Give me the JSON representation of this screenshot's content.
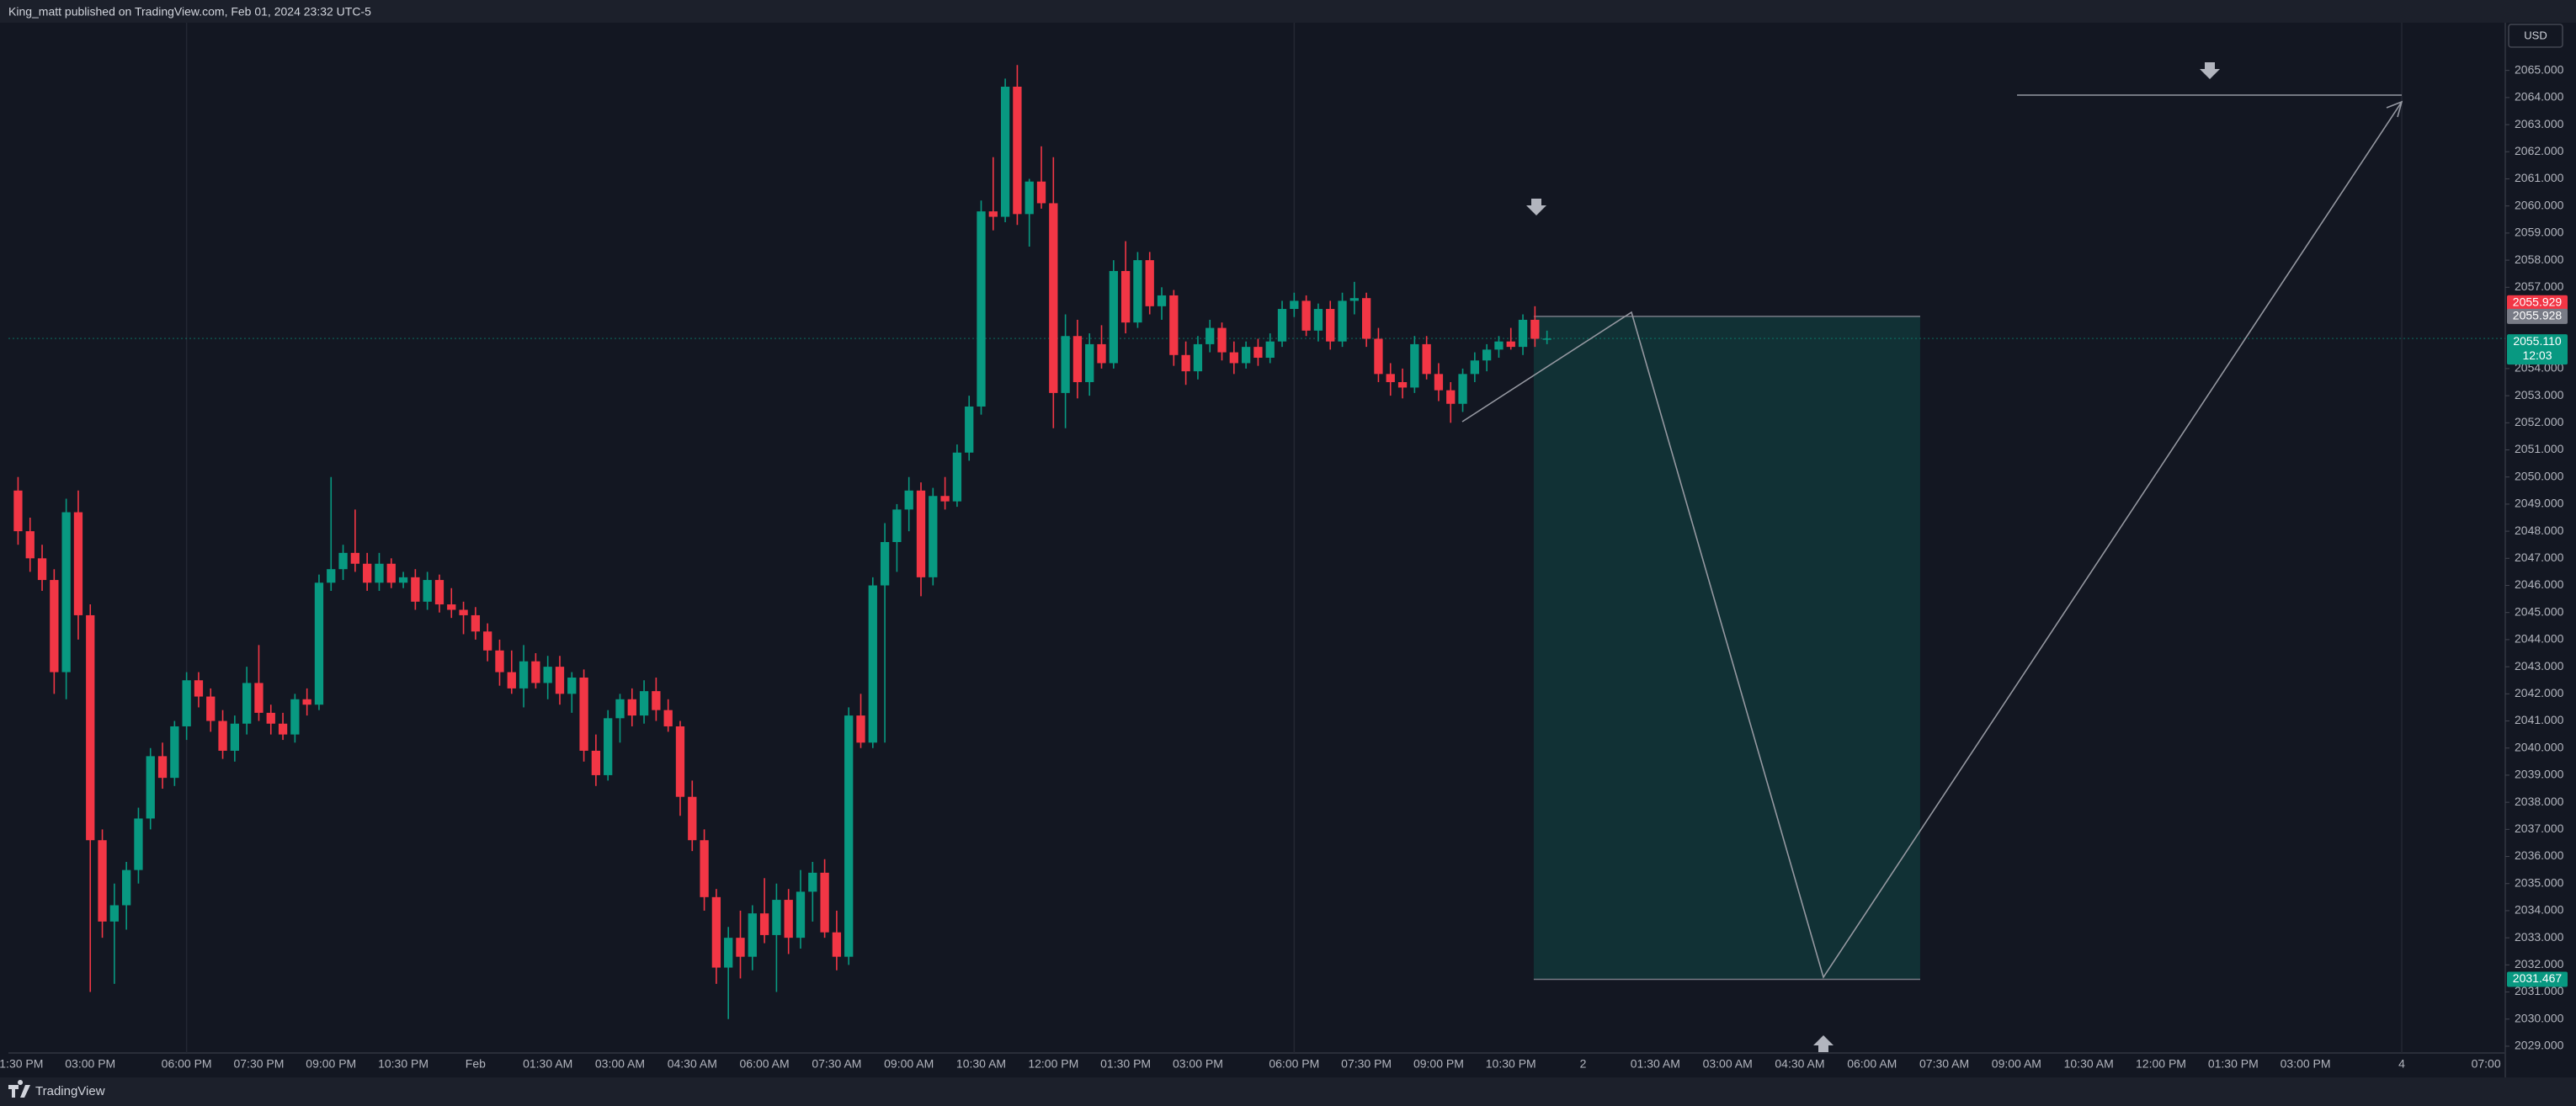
{
  "header": {
    "attribution": "King_matt published on TradingView.com, Feb 01, 2024 23:32 UTC-5"
  },
  "currency": "USD",
  "footer": {
    "brand": "TradingView"
  },
  "chart_data": {
    "type": "candlestick",
    "up_color": "#089981",
    "down_color": "#f23645",
    "ohlc": [
      [
        2049.5,
        2050,
        2047.5,
        2048
      ],
      [
        2048,
        2048.5,
        2046.5,
        2047
      ],
      [
        2047,
        2047.5,
        2045.8,
        2046.2
      ],
      [
        2046.2,
        2046.6,
        2042,
        2042.8
      ],
      [
        2042.8,
        2049.2,
        2041.8,
        2048.7
      ],
      [
        2048.7,
        2049.5,
        2044,
        2044.9
      ],
      [
        2044.9,
        2045.3,
        2031,
        2036.6
      ],
      [
        2036.6,
        2037,
        2033,
        2033.6
      ],
      [
        2033.6,
        2035,
        2031.3,
        2034.2
      ],
      [
        2034.2,
        2035.8,
        2033.3,
        2035.5
      ],
      [
        2035.5,
        2037.8,
        2035,
        2037.4
      ],
      [
        2037.4,
        2040,
        2037,
        2039.7
      ],
      [
        2039.7,
        2040.2,
        2038.5,
        2038.9
      ],
      [
        2038.9,
        2041,
        2038.6,
        2040.8
      ],
      [
        2040.8,
        2042.8,
        2040.3,
        2042.5
      ],
      [
        2042.5,
        2042.8,
        2041.5,
        2041.9
      ],
      [
        2041.9,
        2042.2,
        2040.6,
        2041
      ],
      [
        2041,
        2041.4,
        2039.6,
        2039.9
      ],
      [
        2039.9,
        2041.2,
        2039.5,
        2040.9
      ],
      [
        2040.9,
        2043,
        2040.5,
        2042.4
      ],
      [
        2042.4,
        2043.8,
        2041,
        2041.3
      ],
      [
        2041.3,
        2041.6,
        2040.5,
        2040.9
      ],
      [
        2040.9,
        2041.3,
        2040.3,
        2040.5
      ],
      [
        2040.5,
        2042,
        2040.2,
        2041.8
      ],
      [
        2041.8,
        2042.2,
        2041.2,
        2041.6
      ],
      [
        2041.6,
        2046.4,
        2041.4,
        2046.1
      ],
      [
        2046.1,
        2050,
        2045.8,
        2046.6
      ],
      [
        2046.6,
        2047.5,
        2046.2,
        2047.2
      ],
      [
        2047.2,
        2048.8,
        2046.5,
        2046.8
      ],
      [
        2046.8,
        2047.2,
        2045.8,
        2046.1
      ],
      [
        2046.1,
        2047.2,
        2045.8,
        2046.8
      ],
      [
        2046.8,
        2047,
        2045.9,
        2046.1
      ],
      [
        2046.1,
        2046.5,
        2045.9,
        2046.3
      ],
      [
        2046.3,
        2046.6,
        2045.1,
        2045.4
      ],
      [
        2045.4,
        2046.5,
        2045.1,
        2046.2
      ],
      [
        2046.2,
        2046.4,
        2045,
        2045.3
      ],
      [
        2045.3,
        2045.9,
        2044.8,
        2045.1
      ],
      [
        2045.1,
        2045.4,
        2044.2,
        2044.9
      ],
      [
        2044.9,
        2045.2,
        2044,
        2044.3
      ],
      [
        2044.3,
        2044.6,
        2043.2,
        2043.6
      ],
      [
        2043.6,
        2044,
        2042.3,
        2042.8
      ],
      [
        2042.8,
        2043.6,
        2042,
        2042.2
      ],
      [
        2042.2,
        2043.8,
        2041.5,
        2043.2
      ],
      [
        2043.2,
        2043.5,
        2042.2,
        2042.4
      ],
      [
        2042.4,
        2043.4,
        2041.8,
        2043
      ],
      [
        2043,
        2043.4,
        2041.6,
        2042
      ],
      [
        2042,
        2042.8,
        2041.3,
        2042.6
      ],
      [
        2042.6,
        2042.9,
        2039.5,
        2039.9
      ],
      [
        2039.9,
        2040.5,
        2038.6,
        2039
      ],
      [
        2039,
        2041.4,
        2038.8,
        2041.1
      ],
      [
        2041.1,
        2042,
        2040.2,
        2041.8
      ],
      [
        2041.8,
        2042.2,
        2040.8,
        2041.2
      ],
      [
        2041.2,
        2042.5,
        2040.9,
        2042.1
      ],
      [
        2042.1,
        2042.6,
        2041,
        2041.4
      ],
      [
        2041.4,
        2041.8,
        2040.6,
        2040.8
      ],
      [
        2040.8,
        2041,
        2037.5,
        2038.2
      ],
      [
        2038.2,
        2038.8,
        2036.2,
        2036.6
      ],
      [
        2036.6,
        2037,
        2034,
        2034.5
      ],
      [
        2034.5,
        2034.8,
        2031.3,
        2031.9
      ],
      [
        2031.9,
        2033.4,
        2030,
        2033
      ],
      [
        2033,
        2034,
        2031.5,
        2032.3
      ],
      [
        2032.3,
        2034.2,
        2031.8,
        2033.9
      ],
      [
        2033.9,
        2035.2,
        2032.8,
        2033.1
      ],
      [
        2033.1,
        2035,
        2031,
        2034.4
      ],
      [
        2034.4,
        2034.8,
        2032.4,
        2033
      ],
      [
        2033,
        2035.5,
        2032.6,
        2034.7
      ],
      [
        2034.7,
        2035.8,
        2033.6,
        2035.4
      ],
      [
        2035.4,
        2035.9,
        2033,
        2033.2
      ],
      [
        2033.2,
        2034,
        2031.8,
        2032.3
      ],
      [
        2032.3,
        2041.5,
        2032,
        2041.2
      ],
      [
        2041.2,
        2042,
        2040,
        2040.2
      ],
      [
        2040.2,
        2046.3,
        2040,
        2046
      ],
      [
        2046,
        2048.3,
        2040.2,
        2047.6
      ],
      [
        2047.6,
        2049,
        2046.5,
        2048.8
      ],
      [
        2048.8,
        2050,
        2048,
        2049.5
      ],
      [
        2049.5,
        2049.8,
        2045.6,
        2046.3
      ],
      [
        2046.3,
        2049.6,
        2046,
        2049.3
      ],
      [
        2049.3,
        2050,
        2048.8,
        2049.1
      ],
      [
        2049.1,
        2051.2,
        2048.9,
        2050.9
      ],
      [
        2050.9,
        2053,
        2050.6,
        2052.6
      ],
      [
        2052.6,
        2060.2,
        2052.3,
        2059.8
      ],
      [
        2059.8,
        2061.8,
        2059.1,
        2059.6
      ],
      [
        2059.6,
        2064.7,
        2059.4,
        2064.4
      ],
      [
        2064.4,
        2065.2,
        2059.3,
        2059.7
      ],
      [
        2059.7,
        2061,
        2058.5,
        2060.9
      ],
      [
        2060.9,
        2062.2,
        2059.9,
        2060.1
      ],
      [
        2060.1,
        2061.8,
        2051.8,
        2053.1
      ],
      [
        2053.1,
        2056,
        2051.8,
        2055.2
      ],
      [
        2055.2,
        2055.8,
        2052.9,
        2053.5
      ],
      [
        2053.5,
        2055.3,
        2053,
        2054.9
      ],
      [
        2054.9,
        2055.6,
        2054,
        2054.2
      ],
      [
        2054.2,
        2058,
        2054,
        2057.6
      ],
      [
        2057.6,
        2058.7,
        2055.3,
        2055.7
      ],
      [
        2055.7,
        2058.3,
        2055.5,
        2058
      ],
      [
        2058,
        2058.3,
        2056,
        2056.3
      ],
      [
        2056.3,
        2057,
        2055.8,
        2056.7
      ],
      [
        2056.7,
        2056.9,
        2054.1,
        2054.5
      ],
      [
        2054.5,
        2055,
        2053.4,
        2053.9
      ],
      [
        2053.9,
        2055.2,
        2053.6,
        2054.9
      ],
      [
        2054.9,
        2055.8,
        2054.6,
        2055.5
      ],
      [
        2055.5,
        2055.7,
        2054.3,
        2054.6
      ],
      [
        2054.6,
        2055,
        2053.8,
        2054.2
      ],
      [
        2054.2,
        2055,
        2054,
        2054.8
      ],
      [
        2054.8,
        2055.1,
        2054.1,
        2054.4
      ],
      [
        2054.4,
        2055.3,
        2054.2,
        2055
      ],
      [
        2055,
        2056.5,
        2054.8,
        2056.2
      ],
      [
        2056.2,
        2056.8,
        2055.9,
        2056.5
      ],
      [
        2056.5,
        2056.7,
        2055.2,
        2055.4
      ],
      [
        2055.4,
        2056.4,
        2055,
        2056.2
      ],
      [
        2056.2,
        2056.5,
        2054.7,
        2055
      ],
      [
        2055,
        2056.8,
        2054.8,
        2056.5
      ],
      [
        2056.5,
        2057.2,
        2056,
        2056.6
      ],
      [
        2056.6,
        2056.8,
        2054.8,
        2055.1
      ],
      [
        2055.1,
        2055.5,
        2053.5,
        2053.8
      ],
      [
        2053.8,
        2054.2,
        2053,
        2053.5
      ],
      [
        2053.5,
        2054,
        2052.9,
        2053.3
      ],
      [
        2053.3,
        2055.2,
        2053.1,
        2054.9
      ],
      [
        2054.9,
        2055.2,
        2053.6,
        2053.8
      ],
      [
        2053.8,
        2054.2,
        2052.8,
        2053.2
      ],
      [
        2053.2,
        2053.5,
        2052,
        2052.7
      ],
      [
        2052.7,
        2054,
        2052.4,
        2053.8
      ],
      [
        2053.8,
        2054.6,
        2053.5,
        2054.3
      ],
      [
        2054.3,
        2054.9,
        2053.9,
        2054.7
      ],
      [
        2054.7,
        2055.2,
        2054.4,
        2055
      ],
      [
        2055,
        2055.5,
        2054.7,
        2054.8
      ],
      [
        2054.8,
        2056,
        2054.5,
        2055.8
      ],
      [
        2055.8,
        2056.3,
        2054.8,
        2055.1
      ],
      [
        2055.1,
        2055.4,
        2054.9,
        2055.11
      ]
    ],
    "xlim": [
      -0.8,
      206.6
    ],
    "xticks": [
      {
        "value": 0,
        "label": "01:30 PM"
      },
      {
        "value": 6,
        "label": "03:00 PM"
      },
      {
        "value": 14,
        "label": "06:00 PM"
      },
      {
        "value": 20,
        "label": "07:30 PM"
      },
      {
        "value": 26,
        "label": "09:00 PM"
      },
      {
        "value": 32,
        "label": "10:30 PM"
      },
      {
        "value": 38,
        "label": "Feb"
      },
      {
        "value": 44,
        "label": "01:30 AM"
      },
      {
        "value": 50,
        "label": "03:00 AM"
      },
      {
        "value": 56,
        "label": "04:30 AM"
      },
      {
        "value": 62,
        "label": "06:00 AM"
      },
      {
        "value": 68,
        "label": "07:30 AM"
      },
      {
        "value": 74,
        "label": "09:00 AM"
      },
      {
        "value": 80,
        "label": "10:30 AM"
      },
      {
        "value": 86,
        "label": "12:00 PM"
      },
      {
        "value": 92,
        "label": "01:30 PM"
      },
      {
        "value": 98,
        "label": "03:00 PM"
      },
      {
        "value": 106,
        "label": "06:00 PM"
      },
      {
        "value": 112,
        "label": "07:30 PM"
      },
      {
        "value": 118,
        "label": "09:00 PM"
      },
      {
        "value": 124,
        "label": "10:30 PM"
      },
      {
        "value": 130,
        "label": "2"
      },
      {
        "value": 136,
        "label": "01:30 AM"
      },
      {
        "value": 142,
        "label": "03:00 AM"
      },
      {
        "value": 148,
        "label": "04:30 AM"
      },
      {
        "value": 154,
        "label": "06:00 AM"
      },
      {
        "value": 160,
        "label": "07:30 AM"
      },
      {
        "value": 166,
        "label": "09:00 AM"
      },
      {
        "value": 172,
        "label": "10:30 AM"
      },
      {
        "value": 178,
        "label": "12:00 PM"
      },
      {
        "value": 184,
        "label": "01:30 PM"
      },
      {
        "value": 190,
        "label": "03:00 PM"
      },
      {
        "value": 198,
        "label": "4"
      },
      {
        "value": 205,
        "label": "07:00"
      }
    ],
    "ylim": [
      2028.75,
      2066.76
    ],
    "yticks": [
      {
        "value": 2029,
        "label": "2029.000"
      },
      {
        "value": 2030,
        "label": "2030.000"
      },
      {
        "value": 2031,
        "label": "2031.000"
      },
      {
        "value": 2032,
        "label": "2032.000"
      },
      {
        "value": 2033,
        "label": "2033.000"
      },
      {
        "value": 2034,
        "label": "2034.000"
      },
      {
        "value": 2035,
        "label": "2035.000"
      },
      {
        "value": 2036,
        "label": "2036.000"
      },
      {
        "value": 2037,
        "label": "2037.000"
      },
      {
        "value": 2038,
        "label": "2038.000"
      },
      {
        "value": 2039,
        "label": "2039.000"
      },
      {
        "value": 2040,
        "label": "2040.000"
      },
      {
        "value": 2041,
        "label": "2041.000"
      },
      {
        "value": 2042,
        "label": "2042.000"
      },
      {
        "value": 2043,
        "label": "2043.000"
      },
      {
        "value": 2044,
        "label": "2044.000"
      },
      {
        "value": 2045,
        "label": "2045.000"
      },
      {
        "value": 2046,
        "label": "2046.000"
      },
      {
        "value": 2047,
        "label": "2047.000"
      },
      {
        "value": 2048,
        "label": "2048.000"
      },
      {
        "value": 2049,
        "label": "2049.000"
      },
      {
        "value": 2050,
        "label": "2050.000"
      },
      {
        "value": 2051,
        "label": "2051.000"
      },
      {
        "value": 2052,
        "label": "2052.000"
      },
      {
        "value": 2053,
        "label": "2053.000"
      },
      {
        "value": 2054,
        "label": "2054.000"
      },
      {
        "value": 2057,
        "label": "2057.000"
      },
      {
        "value": 2058,
        "label": "2058.000"
      },
      {
        "value": 2059,
        "label": "2059.000"
      },
      {
        "value": 2060,
        "label": "2060.000"
      },
      {
        "value": 2061,
        "label": "2061.000"
      },
      {
        "value": 2062,
        "label": "2062.000"
      },
      {
        "value": 2063,
        "label": "2063.000"
      },
      {
        "value": 2064,
        "label": "2064.000"
      },
      {
        "value": 2065,
        "label": "2065.000"
      }
    ],
    "position": {
      "stop": 2055.929,
      "entry": 2055.928,
      "target": 2031.467
    },
    "last_price": {
      "value": 2055.11,
      "label": "2055.110"
    },
    "countdown": "12:03"
  }
}
